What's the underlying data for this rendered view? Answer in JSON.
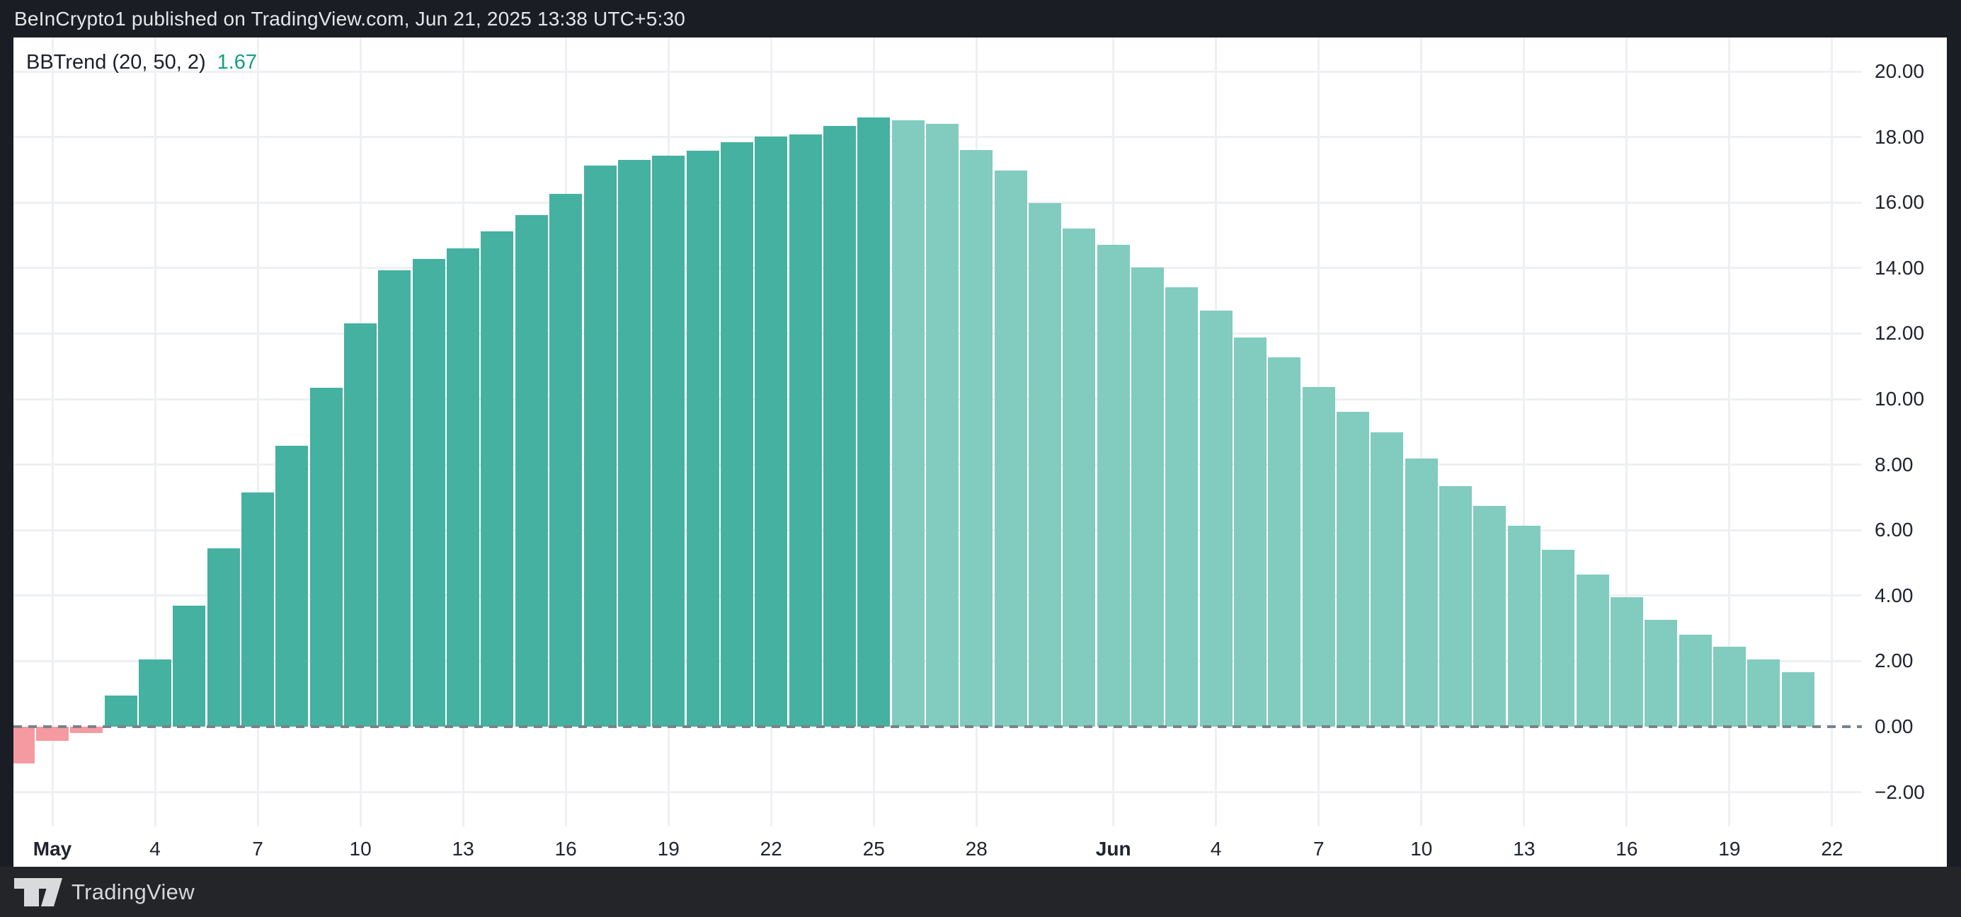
{
  "publish_banner": {
    "text": "BeInCrypto1 published on TradingView.com, Jun 21, 2025 13:38 UTC+5:30"
  },
  "legend": {
    "title": "BBTrend (20, 50, 2)",
    "value": "1.67"
  },
  "footer": {
    "brand": "TradingView"
  },
  "chart_data": {
    "type": "bar",
    "title": "BBTrend (20, 50, 2)",
    "current_value": 1.67,
    "ylim": [
      -3.0,
      21.1
    ],
    "grid": true,
    "legend_position": "top-left",
    "zero_line_style": "dashed",
    "categories": [
      "Apr 30",
      "May 1",
      "May 2",
      "May 3",
      "May 4",
      "May 5",
      "May 6",
      "May 7",
      "May 8",
      "May 9",
      "May 10",
      "May 11",
      "May 12",
      "May 13",
      "May 14",
      "May 15",
      "May 16",
      "May 17",
      "May 18",
      "May 19",
      "May 20",
      "May 21",
      "May 22",
      "May 23",
      "May 24",
      "May 25",
      "May 26",
      "May 27",
      "May 28",
      "May 29",
      "May 30",
      "May 31",
      "Jun 1",
      "Jun 2",
      "Jun 3",
      "Jun 4",
      "Jun 5",
      "Jun 6",
      "Jun 7",
      "Jun 8",
      "Jun 9",
      "Jun 10",
      "Jun 11",
      "Jun 12",
      "Jun 13",
      "Jun 14",
      "Jun 15",
      "Jun 16",
      "Jun 17",
      "Jun 18",
      "Jun 19",
      "Jun 20",
      "Jun 21"
    ],
    "values": [
      -1.12,
      -0.43,
      -0.19,
      0.95,
      2.05,
      3.69,
      5.44,
      7.15,
      8.57,
      10.34,
      12.31,
      13.93,
      14.28,
      14.6,
      15.12,
      15.61,
      16.27,
      17.13,
      17.3,
      17.43,
      17.59,
      17.83,
      18.01,
      18.08,
      18.34,
      18.6,
      18.51,
      18.4,
      17.6,
      16.97,
      15.98,
      15.21,
      14.71,
      14.02,
      13.41,
      12.7,
      11.88,
      11.27,
      10.37,
      9.61,
      8.98,
      8.19,
      7.34,
      6.74,
      6.14,
      5.41,
      4.65,
      3.95,
      3.26,
      2.81,
      2.45,
      2.06,
      1.67
    ],
    "tiers": [
      "neg",
      "neg",
      "neg",
      "up",
      "up",
      "up",
      "up",
      "up",
      "up",
      "up",
      "up",
      "up",
      "up",
      "up",
      "up",
      "up",
      "up",
      "up",
      "up",
      "up",
      "up",
      "up",
      "up",
      "up",
      "up",
      "up",
      "fade",
      "fade",
      "fade",
      "fade",
      "fade",
      "fade",
      "fade",
      "fade",
      "fade",
      "fade",
      "fade",
      "fade",
      "fade",
      "fade",
      "fade",
      "fade",
      "fade",
      "fade",
      "fade",
      "fade",
      "fade",
      "fade",
      "fade",
      "fade",
      "fade",
      "fade",
      "fade"
    ],
    "y_ticks": [
      {
        "label": "20.00",
        "value": 20
      },
      {
        "label": "18.00",
        "value": 18
      },
      {
        "label": "16.00",
        "value": 16
      },
      {
        "label": "14.00",
        "value": 14
      },
      {
        "label": "12.00",
        "value": 12
      },
      {
        "label": "10.00",
        "value": 10
      },
      {
        "label": "8.00",
        "value": 8
      },
      {
        "label": "6.00",
        "value": 6
      },
      {
        "label": "4.00",
        "value": 4
      },
      {
        "label": "2.00",
        "value": 2
      },
      {
        "label": "0.00",
        "value": 0
      },
      {
        "label": "−2.00",
        "value": -2
      }
    ],
    "x_ticks": [
      {
        "label": "May",
        "day": 0,
        "bold": true
      },
      {
        "label": "4",
        "day": 3
      },
      {
        "label": "7",
        "day": 6
      },
      {
        "label": "10",
        "day": 9
      },
      {
        "label": "13",
        "day": 12
      },
      {
        "label": "16",
        "day": 15
      },
      {
        "label": "19",
        "day": 18
      },
      {
        "label": "22",
        "day": 21
      },
      {
        "label": "25",
        "day": 24
      },
      {
        "label": "28",
        "day": 27
      },
      {
        "label": "Jun",
        "day": 31,
        "bold": true
      },
      {
        "label": "4",
        "day": 34
      },
      {
        "label": "7",
        "day": 37
      },
      {
        "label": "10",
        "day": 40
      },
      {
        "label": "13",
        "day": 43
      },
      {
        "label": "16",
        "day": 46
      },
      {
        "label": "19",
        "day": 49
      },
      {
        "label": "22",
        "day": 52
      }
    ],
    "colors": {
      "up": "#45b1a1",
      "fade": "#82cbbf",
      "neg": "#f59aa1",
      "grid": "#eef0f3",
      "zero_line": "#7a828c",
      "axis_text": "#20242e",
      "legend_value": "#10a083",
      "panel_bg": "#ffffff",
      "header_bg": "#1a1d23",
      "footer_bg": "#232529"
    }
  }
}
